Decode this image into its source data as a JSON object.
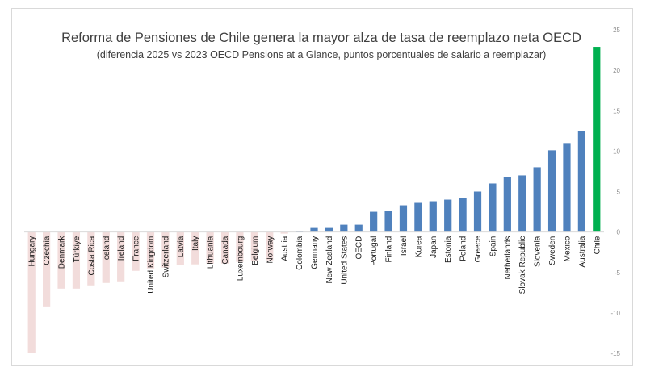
{
  "chart_data": {
    "type": "bar",
    "title": "Reforma de Pensiones de Chile genera la mayor alza de tasa de reemplazo neta OECD",
    "subtitle": "(diferencia 2025 vs 2023 OECD Pensions at a Glance, puntos porcentuales de salario a reemplazar)",
    "xlabel": "",
    "ylabel": "",
    "ylim": [
      -15,
      25
    ],
    "yticks": [
      -15,
      -10,
      -5,
      0,
      5,
      10,
      15,
      20,
      25
    ],
    "y_axis_position": "right",
    "grid": false,
    "categories": [
      "Hungary",
      "Czechia",
      "Denmark",
      "Türkiye",
      "Costa Rica",
      "Iceland",
      "Ireland",
      "France",
      "United Kingdom",
      "Switzerland",
      "Latvia",
      "Italy",
      "Lithuania",
      "Canada",
      "Luxembourg",
      "Belgium",
      "Norway",
      "Austria",
      "Colombia",
      "Germany",
      "New Zealand",
      "United States",
      "OECD",
      "Portugal",
      "Finland",
      "Israel",
      "Korea",
      "Japan",
      "Estonia",
      "Poland",
      "Greece",
      "Spain",
      "Netherlands",
      "Slovak Republic",
      "Slovenia",
      "Sweden",
      "Mexico",
      "Australia",
      "Chile"
    ],
    "values": [
      -15.0,
      -9.3,
      -7.0,
      -7.0,
      -6.6,
      -6.3,
      -6.2,
      -4.8,
      -4.5,
      -4.4,
      -4.1,
      -4.0,
      -3.9,
      -3.9,
      -3.7,
      -3.6,
      -3.5,
      -0.2,
      0.1,
      0.5,
      0.5,
      0.9,
      0.9,
      2.5,
      2.6,
      3.3,
      3.6,
      3.8,
      4.0,
      4.2,
      5.0,
      6.0,
      6.8,
      7.0,
      8.0,
      10.1,
      11.0,
      12.5,
      22.9
    ],
    "colors": {
      "negative": "#f2dcdb",
      "positive": "#4f81bd",
      "highlight": "#00b050"
    },
    "highlight_category": "Chile"
  }
}
